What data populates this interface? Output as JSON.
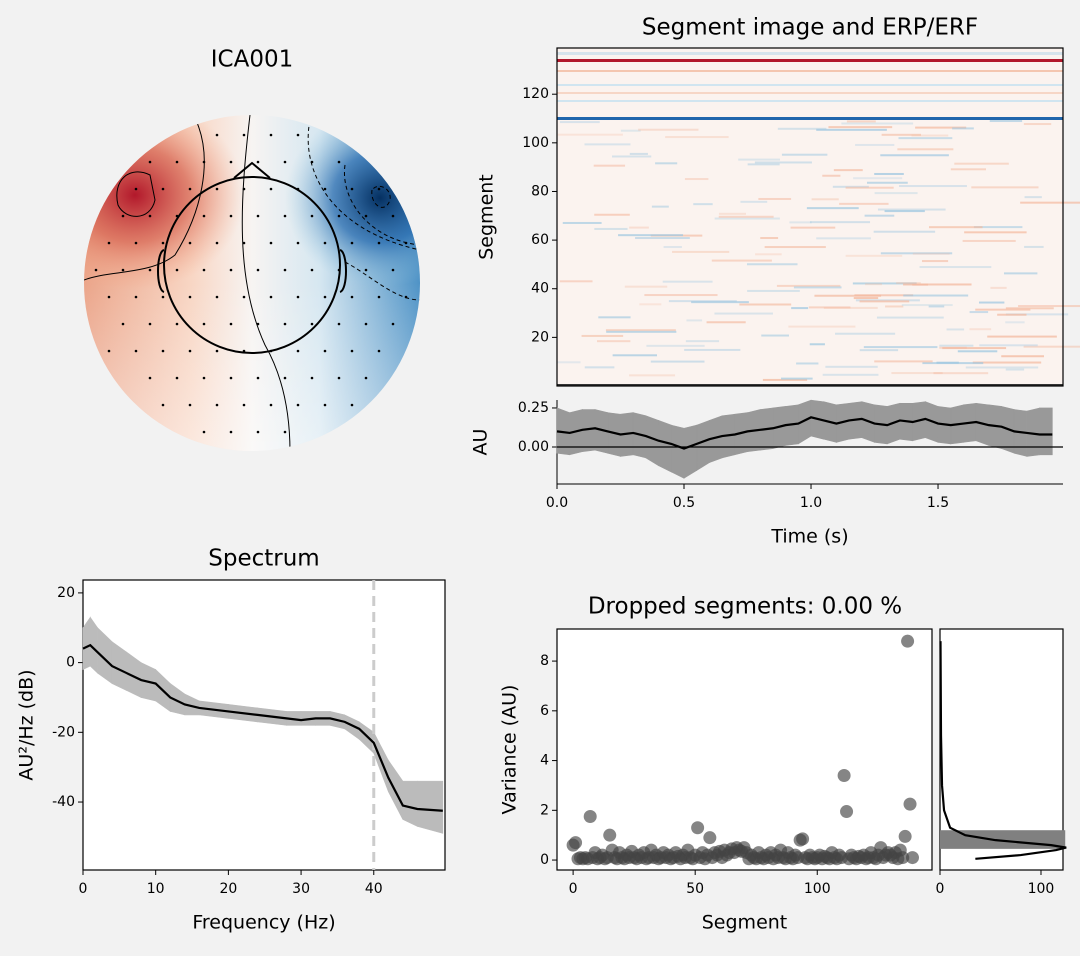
{
  "chart_data": [
    {
      "type": "topomap",
      "title": "ICA001"
    },
    {
      "type": "image",
      "title": "Segment image and ERP/ERF",
      "ylabel": "Segment",
      "ylim": [
        0,
        139
      ],
      "yticks": [
        20,
        40,
        60,
        80,
        100,
        120
      ]
    },
    {
      "type": "line",
      "ylabel": "AU",
      "xlabel": "Time (s)",
      "xlim": [
        0,
        1.992
      ],
      "ylim": [
        -0.237,
        0.301
      ],
      "xticks": [
        {
          "value": 0,
          "label": "0.0"
        },
        {
          "value": 0.5,
          "label": "0.5"
        },
        {
          "value": 1,
          "label": "1.0"
        },
        {
          "value": 1.5,
          "label": "1.5"
        }
      ],
      "yticks": [
        {
          "value": 0,
          "label": "0.00"
        },
        {
          "value": 0.25,
          "label": "0.25"
        }
      ],
      "zero_line": true,
      "color": "#000000",
      "band_color": "#999999",
      "x": [
        0,
        0.05,
        0.1,
        0.15,
        0.2,
        0.25,
        0.3,
        0.35,
        0.4,
        0.45,
        0.5,
        0.55,
        0.6,
        0.65,
        0.7,
        0.75,
        0.8,
        0.85,
        0.9,
        0.95,
        1,
        1.05,
        1.1,
        1.15,
        1.2,
        1.25,
        1.3,
        1.35,
        1.4,
        1.45,
        1.5,
        1.55,
        1.6,
        1.65,
        1.7,
        1.75,
        1.8,
        1.85,
        1.9,
        1.95
      ],
      "values": [
        0.1,
        0.09,
        0.11,
        0.12,
        0.1,
        0.08,
        0.09,
        0.07,
        0.04,
        0.02,
        -0.01,
        0.02,
        0.05,
        0.07,
        0.08,
        0.1,
        0.11,
        0.12,
        0.14,
        0.15,
        0.19,
        0.17,
        0.15,
        0.17,
        0.18,
        0.15,
        0.14,
        0.17,
        0.16,
        0.18,
        0.15,
        0.14,
        0.15,
        0.16,
        0.14,
        0.13,
        0.1,
        0.09,
        0.08,
        0.08
      ],
      "upper": [
        0.25,
        0.22,
        0.24,
        0.24,
        0.22,
        0.21,
        0.22,
        0.2,
        0.17,
        0.14,
        0.12,
        0.14,
        0.17,
        0.2,
        0.21,
        0.22,
        0.24,
        0.25,
        0.26,
        0.27,
        0.3,
        0.29,
        0.27,
        0.28,
        0.29,
        0.27,
        0.26,
        0.28,
        0.28,
        0.29,
        0.26,
        0.25,
        0.27,
        0.28,
        0.27,
        0.26,
        0.24,
        0.23,
        0.25,
        0.25
      ],
      "lower": [
        -0.04,
        -0.05,
        -0.03,
        -0.02,
        -0.04,
        -0.06,
        -0.05,
        -0.07,
        -0.12,
        -0.16,
        -0.2,
        -0.15,
        -0.1,
        -0.07,
        -0.05,
        -0.03,
        -0.02,
        -0.01,
        0.01,
        0.02,
        0.07,
        0.05,
        0.03,
        0.05,
        0.06,
        0.03,
        0.02,
        0.05,
        0.04,
        0.06,
        0.03,
        0.02,
        0.03,
        0.04,
        0.01,
        -0.01,
        -0.04,
        -0.06,
        -0.05,
        -0.05
      ]
    },
    {
      "type": "line",
      "title": "Spectrum",
      "xlabel": "Frequency (Hz)",
      "ylabel": "AU²/Hz (dB)",
      "xlim": [
        0,
        49.8
      ],
      "ylim": [
        -59.5,
        23.7
      ],
      "xticks": [
        0,
        10,
        20,
        30,
        40
      ],
      "yticks": [
        -40,
        -20,
        0,
        20
      ],
      "vline": 40,
      "color": "#000000",
      "band_color": "#bbbbbb",
      "x": [
        0,
        1,
        2,
        4,
        6,
        8,
        10,
        12,
        14,
        16,
        20,
        24,
        28,
        30,
        32,
        34,
        36,
        38,
        40,
        42,
        44,
        46,
        49.5
      ],
      "values": [
        4,
        5,
        3,
        -1,
        -3,
        -5,
        -6,
        -10,
        -12,
        -13,
        -14,
        -15,
        -16,
        -16.5,
        -16,
        -16,
        -17,
        -19,
        -23,
        -33,
        -41,
        -42,
        -42.5
      ],
      "upper": [
        10,
        13,
        10,
        6,
        3,
        0,
        -2,
        -6,
        -9,
        -11,
        -12,
        -13,
        -14,
        -14,
        -14,
        -14,
        -15,
        -17,
        -20,
        -28,
        -34,
        -34,
        -34
      ],
      "lower": [
        -2,
        -1,
        -3,
        -6,
        -8,
        -10,
        -11,
        -14,
        -15,
        -15,
        -16,
        -17,
        -18,
        -18,
        -18,
        -18,
        -19,
        -22,
        -26,
        -37,
        -45,
        -47,
        -49
      ]
    },
    {
      "type": "scatter",
      "title": "Dropped segments: 0.00 %",
      "xlabel": "Segment",
      "ylabel": "Variance (AU)",
      "xlim": [
        -6.6,
        147
      ],
      "ylim": [
        -0.4,
        9.29
      ],
      "xticks": [
        0,
        50,
        100
      ],
      "yticks": [
        0,
        2,
        4,
        6,
        8
      ],
      "color": "#444444",
      "x": [
        0,
        1,
        2,
        3,
        4,
        5,
        6,
        7,
        8,
        9,
        10,
        11,
        12,
        13,
        14,
        15,
        16,
        17,
        18,
        19,
        20,
        21,
        22,
        23,
        24,
        25,
        26,
        27,
        28,
        29,
        30,
        31,
        32,
        33,
        34,
        35,
        36,
        37,
        38,
        39,
        40,
        41,
        42,
        43,
        44,
        45,
        46,
        47,
        48,
        49,
        50,
        51,
        52,
        53,
        54,
        55,
        56,
        57,
        58,
        59,
        60,
        61,
        62,
        63,
        64,
        65,
        66,
        67,
        68,
        69,
        70,
        71,
        72,
        73,
        74,
        75,
        76,
        77,
        78,
        79,
        80,
        81,
        82,
        83,
        84,
        85,
        86,
        87,
        88,
        89,
        90,
        91,
        92,
        93,
        94,
        95,
        96,
        97,
        98,
        99,
        100,
        101,
        102,
        103,
        104,
        105,
        106,
        107,
        108,
        109,
        110,
        111,
        112,
        113,
        114,
        115,
        116,
        117,
        118,
        119,
        120,
        121,
        122,
        123,
        124,
        125,
        126,
        127,
        128,
        129,
        130,
        131,
        132,
        133,
        134,
        135,
        136,
        137,
        138,
        139
      ],
      "values": [
        0.6,
        0.7,
        0.05,
        0.1,
        0.05,
        0.1,
        0.05,
        1.75,
        0.1,
        0.3,
        0.05,
        0.1,
        0.2,
        0.05,
        0.1,
        1.0,
        0.4,
        0.1,
        0.05,
        0.3,
        0.1,
        0.05,
        0.2,
        0.1,
        0.35,
        0.1,
        0.05,
        0.2,
        0.1,
        0.3,
        0.05,
        0.1,
        0.4,
        0.1,
        0.2,
        0.05,
        0.1,
        0.3,
        0.1,
        0.2,
        0.05,
        0.1,
        0.3,
        0.15,
        0.05,
        0.2,
        0.1,
        0.4,
        0.1,
        0.05,
        0.2,
        1.3,
        0.1,
        0.3,
        0.05,
        0.2,
        0.9,
        0.1,
        0.3,
        0.2,
        0.35,
        0.1,
        0.4,
        0.2,
        0.3,
        0.45,
        0.3,
        0.5,
        0.4,
        0.35,
        0.5,
        0.3,
        0.05,
        0.2,
        0.1,
        0.05,
        0.3,
        0.1,
        0.05,
        0.2,
        0.1,
        0.3,
        0.05,
        0.2,
        0.1,
        0.4,
        0.1,
        0.05,
        0.3,
        0.1,
        0.05,
        0.2,
        0.1,
        0.8,
        0.85,
        0.1,
        0.05,
        0.2,
        0.1,
        0.05,
        0.1,
        0.2,
        0.05,
        0.15,
        0.1,
        0.05,
        0.3,
        0.1,
        0.05,
        0.2,
        0.1,
        3.4,
        1.95,
        0.05,
        0.2,
        0.1,
        0.05,
        0.15,
        0.1,
        0.2,
        0.05,
        0.1,
        0.3,
        0.1,
        0.05,
        0.2,
        0.5,
        0.1,
        0.2,
        0.3,
        0.2,
        0.1,
        0.3,
        0.05,
        0.4,
        0.1,
        0.95,
        8.8,
        2.25,
        0.1
      ]
    },
    {
      "type": "histogram",
      "orientation": "horizontal",
      "xlim": [
        0,
        121.8
      ],
      "xticks": [
        0,
        100
      ],
      "ylim": [
        -0.4,
        9.29
      ],
      "color": "#808080",
      "bins": [
        0.45,
        1.2
      ],
      "counts": [
        124
      ],
      "kde_variance": [
        0.05,
        0.2,
        0.4,
        0.5,
        0.6,
        0.8,
        1.0,
        1.3,
        2,
        3,
        5,
        8.8
      ],
      "kde_density": [
        35,
        80,
        115,
        125,
        110,
        55,
        25,
        10,
        4,
        2,
        1,
        0.5
      ]
    }
  ]
}
